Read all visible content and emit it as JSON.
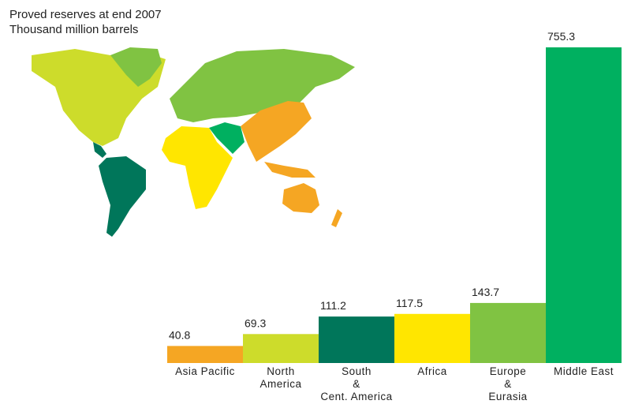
{
  "chart_data": {
    "type": "bar",
    "title": "Proved reserves at end 2007",
    "subtitle": "Thousand million barrels",
    "categories": [
      "Asia Pacific",
      "North\nAmerica",
      "South\n&\nCent. America",
      "Africa",
      "Europe\n&\nEurasia",
      "Middle East"
    ],
    "values": [
      40.8,
      69.3,
      111.2,
      117.5,
      143.7,
      755.3
    ],
    "colors": [
      "#f5a623",
      "#cddc2b",
      "#00765a",
      "#ffe600",
      "#80c342",
      "#00b060"
    ]
  }
}
